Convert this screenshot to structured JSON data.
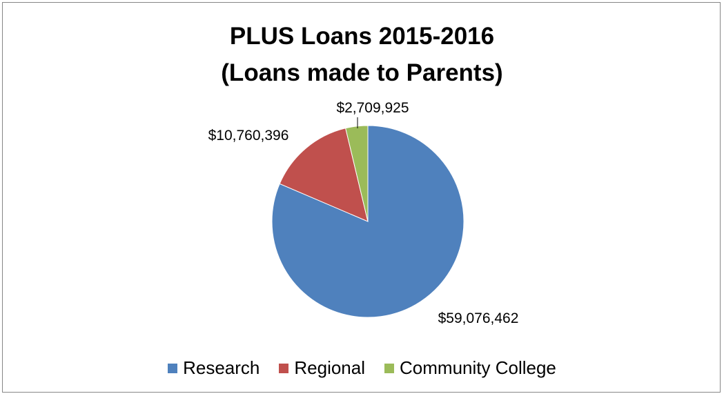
{
  "chart_data": {
    "type": "pie",
    "title_lines": [
      "PLUS Loans 2015-2016",
      "(Loans made to Parents)"
    ],
    "categories": [
      "Research",
      "Regional",
      "Community College"
    ],
    "values": [
      59076462,
      10760396,
      2709925
    ],
    "data_labels": [
      "$59,076,462",
      "$10,760,396",
      "$2,709,925"
    ],
    "colors": [
      "#4f81bd",
      "#c0504d",
      "#9bbb59"
    ],
    "start_angle_deg": 0,
    "direction": "clockwise",
    "legend_position": "bottom"
  }
}
